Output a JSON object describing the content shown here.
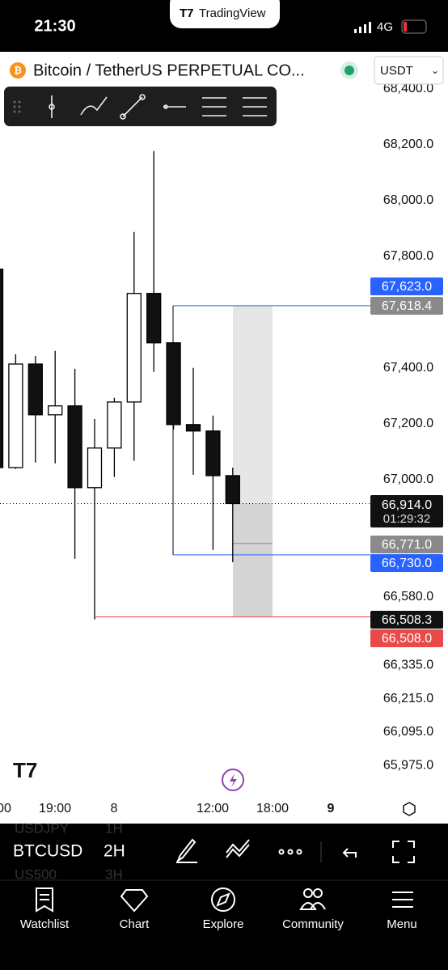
{
  "status_bar": {
    "time": "21:30",
    "app": "TradingView",
    "network": "4G"
  },
  "header": {
    "symbol": "Bitcoin / TetherUS PERPETUAL CO...",
    "currency": "USDT"
  },
  "chart_data": {
    "type": "candlestick",
    "open": [
      67754,
      67043,
      67414,
      67232,
      67264,
      66971,
      67113,
      67278,
      67667,
      67490,
      67197,
      67174,
      67014
    ],
    "high": [
      67754,
      67449,
      67443,
      67461,
      67397,
      67217,
      67293,
      67887,
      68177,
      67490,
      67400,
      67229,
      67043
    ],
    "low": [
      67043,
      67038,
      67061,
      67058,
      66716,
      66499,
      67009,
      67067,
      67386,
      67180,
      67017,
      66748,
      66704
    ],
    "close": [
      67043,
      67414,
      67232,
      67264,
      66971,
      67113,
      67278,
      67667,
      67490,
      67197,
      67174,
      67014,
      66914
    ],
    "x_labels": [
      "00",
      "19:00",
      "8",
      "12:00",
      "18:00",
      "9"
    ],
    "ylim": [
      65863,
      68530
    ],
    "yticks": [
      {
        "value": 68400,
        "label": "68,400.0"
      },
      {
        "value": 68200,
        "label": "68,200.0"
      },
      {
        "value": 68000,
        "label": "68,000.0"
      },
      {
        "value": 67800,
        "label": "67,800.0"
      },
      {
        "value": 67400,
        "label": "67,400.0"
      },
      {
        "value": 67200,
        "label": "67,200.0"
      },
      {
        "value": 67000,
        "label": "67,000.0"
      },
      {
        "value": 66580,
        "label": "66,580.0"
      },
      {
        "value": 66335,
        "label": "66,335.0"
      },
      {
        "value": 66215,
        "label": "66,215.0"
      },
      {
        "value": 66095,
        "label": "66,095.0"
      },
      {
        "value": 65975,
        "label": "65,975.0"
      }
    ],
    "price_labels": [
      {
        "value": 67623,
        "label": "67,623.0",
        "color": "#2962ff"
      },
      {
        "value": 67618.4,
        "label": "67,618.4",
        "color": "#8a8a8a"
      },
      {
        "value": 66914,
        "label": "66,914.0",
        "color": "#111111"
      },
      {
        "value": 66771,
        "label": "66,771.0",
        "color": "#8a8a8a"
      },
      {
        "value": 66730,
        "label": "66,730.0",
        "color": "#2962ff"
      },
      {
        "value": 66508.3,
        "label": "66,508.3",
        "color": "#111111"
      },
      {
        "value": 66508,
        "label": "66,508.0",
        "color": "#e84a4a"
      }
    ],
    "countdown": "01:29:32"
  },
  "bottom_toolbar": {
    "symbol": "BTCUSD",
    "interval": "2H",
    "ghost_symbols": [
      "USDJPY",
      "US500"
    ],
    "ghost_intervals": [
      "1H",
      "3H"
    ]
  },
  "tabs": [
    "Watchlist",
    "Chart",
    "Explore",
    "Community",
    "Menu"
  ]
}
